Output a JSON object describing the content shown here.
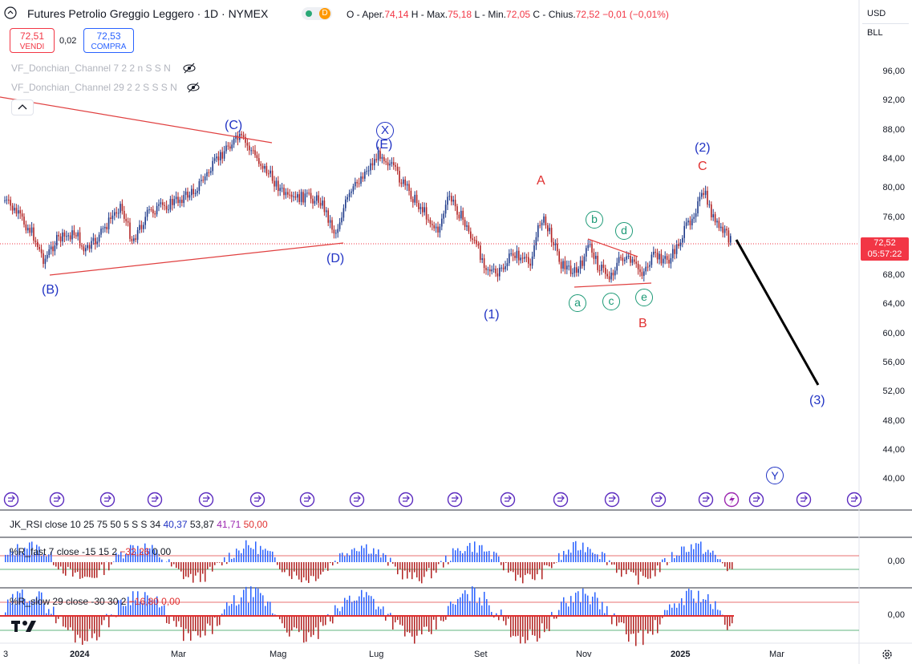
{
  "header": {
    "symbol_title": "Futures Petrolio Greggio Leggero · 1D · NYMEX",
    "badge_a": "",
    "badge_b": "D",
    "ohlc": {
      "open_label": "O - Aper.",
      "open": "74,14",
      "high_label": "H - Max.",
      "high": "75,18",
      "low_label": "L - Min.",
      "low": "72,05",
      "close_label": "C - Chius.",
      "close": "72,52",
      "change": "−0,01 (−0,01%)"
    }
  },
  "trade": {
    "sell_price": "72,51",
    "sell_label": "VENDI",
    "spread": "0,02",
    "buy_price": "72,53",
    "buy_label": "COMPRA"
  },
  "indicators": [
    {
      "label": "VF_Donchian_Channel 7 2 2 n S S N"
    },
    {
      "label": "VF_Donchian_Channel 29 2 2 S S S N"
    }
  ],
  "axis": {
    "currency": "USD",
    "unit": "BLL",
    "price_ticks": [
      "96,00",
      "92,00",
      "88,00",
      "84,00",
      "80,00",
      "76,00",
      "72,00",
      "68,00",
      "64,00",
      "60,00",
      "56,00",
      "52,00",
      "48,00",
      "44,00",
      "40,00"
    ],
    "last_price": "72,52",
    "countdown": "05:57:22"
  },
  "time_axis": [
    "3",
    "2024",
    "Mar",
    "Mag",
    "Lug",
    "Set",
    "Nov",
    "2025",
    "Mar"
  ],
  "waves": {
    "C_top": "(C)",
    "B": "(B)",
    "D": "(D)",
    "X": "X",
    "E": "(E)",
    "A_red": "A",
    "one": "(1)",
    "a": "a",
    "b": "b",
    "c": "c",
    "d": "d",
    "e": "e",
    "B_red": "B",
    "two": "(2)",
    "C_red": "C",
    "three": "(3)",
    "Y": "Y"
  },
  "panes": {
    "rsi": {
      "name": "JK_RSI close 10 25 75 50 5 S S 34",
      "v1": "40,37",
      "v2": "53,87",
      "v3": "41,71",
      "v4": "50,00"
    },
    "rfast": {
      "name": "%R_fast 7 close -15 15 2",
      "v1": "−32,26",
      "v2": "0,00",
      "axis": "0,00"
    },
    "rslow": {
      "name": "%R_slow 29 close -30 30 2",
      "v1": "−16,80",
      "v2": "0,00",
      "axis": "0,00"
    }
  },
  "colors": {
    "up": "#1e3a8a",
    "down": "#b22222",
    "wave_blue": "#2133c4",
    "wave_red": "#e03030",
    "wave_green": "#1c9a76",
    "trendline": "#e04040",
    "projection": "#000000",
    "accent_blue": "#2962ff",
    "sell_red": "#f23645"
  }
}
